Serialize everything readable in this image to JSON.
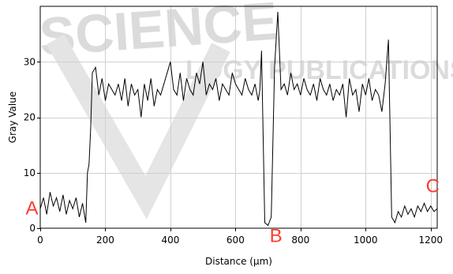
{
  "chart_data": {
    "type": "line",
    "xlabel": "Distance (µm)",
    "ylabel": "Gray Value",
    "xlim": [
      0,
      1220
    ],
    "ylim": [
      0,
      40
    ],
    "x_ticks": [
      0,
      200,
      400,
      600,
      800,
      1000,
      1200
    ],
    "x_tick_labels": [
      "0",
      "200",
      "400",
      "600",
      "800",
      "1000",
      "1200"
    ],
    "y_ticks": [
      0,
      10,
      20,
      30
    ],
    "y_tick_labels": [
      "0",
      "10",
      "20",
      "30"
    ],
    "grid": true,
    "line_color": "#000000",
    "annotation_color": "#ff3b30",
    "annotations": [
      {
        "text": "A",
        "x": -45,
        "y": 2.5
      },
      {
        "text": "B",
        "x": 705,
        "y": -2.5
      },
      {
        "text": "C",
        "x": 1185,
        "y": 6.5
      }
    ],
    "series": [
      {
        "x": [
          0,
          10,
          20,
          30,
          40,
          50,
          60,
          70,
          80,
          90,
          100,
          110,
          120,
          130,
          140,
          145,
          150,
          155,
          160,
          170,
          180,
          190,
          200,
          210,
          220,
          230,
          240,
          250,
          260,
          270,
          280,
          290,
          300,
          310,
          320,
          330,
          340,
          350,
          360,
          370,
          380,
          390,
          400,
          410,
          420,
          430,
          440,
          450,
          460,
          470,
          480,
          490,
          500,
          510,
          520,
          530,
          540,
          550,
          560,
          570,
          580,
          590,
          600,
          610,
          620,
          630,
          640,
          650,
          660,
          670,
          675,
          680,
          690,
          700,
          710,
          720,
          730,
          740,
          750,
          760,
          770,
          780,
          790,
          800,
          810,
          820,
          830,
          840,
          850,
          860,
          870,
          880,
          890,
          900,
          910,
          920,
          930,
          940,
          950,
          960,
          970,
          980,
          990,
          1000,
          1010,
          1020,
          1030,
          1040,
          1050,
          1060,
          1070,
          1080,
          1090,
          1100,
          1110,
          1120,
          1130,
          1140,
          1150,
          1160,
          1170,
          1180,
          1190,
          1200,
          1210,
          1220
        ],
        "y": [
          3.5,
          5.5,
          2.5,
          6.5,
          4,
          5.5,
          3,
          6,
          2.5,
          5,
          3.5,
          5.5,
          2,
          4.5,
          1,
          10,
          11.5,
          18,
          28,
          29,
          24,
          27,
          23,
          26,
          25,
          24,
          26,
          23,
          27,
          22,
          26,
          24,
          25,
          20,
          26,
          23,
          27,
          22,
          25,
          24,
          26,
          28,
          30,
          25,
          24,
          28,
          23,
          27,
          25,
          24,
          28,
          26,
          30,
          24,
          26,
          25,
          27,
          23,
          26,
          25,
          24,
          28,
          26,
          25,
          24,
          27,
          25,
          24,
          26,
          23,
          25,
          32,
          1,
          0.5,
          2,
          29,
          39,
          25,
          26,
          24,
          28,
          25,
          26,
          24,
          27,
          25,
          24,
          26,
          23,
          27,
          25,
          24,
          26,
          23,
          25,
          24,
          26,
          20,
          27,
          24,
          25,
          21,
          26,
          24,
          27,
          23,
          25,
          24,
          21,
          26,
          34,
          2,
          1,
          3,
          2,
          4,
          2.5,
          3.5,
          2,
          4,
          3,
          4.5,
          3,
          4,
          3,
          3.5
        ]
      }
    ]
  }
}
